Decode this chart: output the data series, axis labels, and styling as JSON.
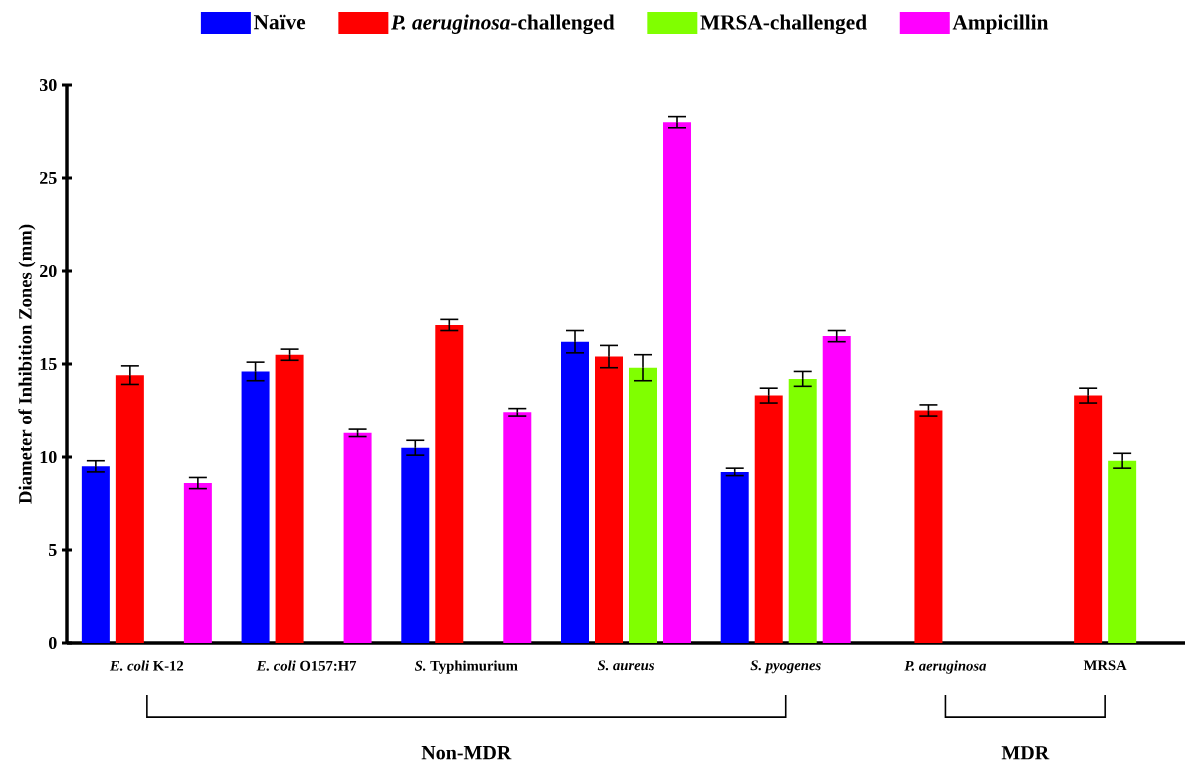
{
  "chart_data": {
    "type": "bar",
    "ylabel": "Diameter of Inhibition Zones (mm)",
    "categories": [
      "*E. coli* K-12",
      "*E. coli* O157:H7",
      "*S.* Typhimurium",
      "*S. aureus*",
      "*S. pyogenes*",
      "*P. aeruginosa*",
      "MRSA"
    ],
    "series": [
      {
        "name": "Naïve",
        "color": "#0000ff",
        "values": [
          9.5,
          14.6,
          10.5,
          16.2,
          9.2,
          null,
          null
        ],
        "errors": [
          0.3,
          0.5,
          0.4,
          0.6,
          0.2,
          null,
          null
        ]
      },
      {
        "name": "*P. aeruginosa*-challenged",
        "color": "#ff0000",
        "values": [
          14.4,
          15.5,
          17.1,
          15.4,
          13.3,
          12.5,
          13.3
        ],
        "errors": [
          0.5,
          0.3,
          0.3,
          0.6,
          0.4,
          0.3,
          0.4
        ]
      },
      {
        "name": "MRSA-challenged",
        "color": "#80ff00",
        "values": [
          null,
          null,
          null,
          14.8,
          14.2,
          null,
          9.8
        ],
        "errors": [
          null,
          null,
          null,
          0.7,
          0.4,
          null,
          0.4
        ]
      },
      {
        "name": "Ampicillin",
        "color": "#ff00ff",
        "values": [
          8.6,
          11.3,
          12.4,
          28.0,
          16.5,
          null,
          null
        ],
        "errors": [
          0.3,
          0.2,
          0.2,
          0.3,
          0.3,
          null,
          null
        ]
      }
    ],
    "ylim": [
      0,
      30
    ],
    "yticks": [
      0,
      5,
      10,
      15,
      20,
      25,
      30
    ],
    "legend": "top",
    "annotations": [
      "Non-MDR",
      "MDR"
    ]
  }
}
